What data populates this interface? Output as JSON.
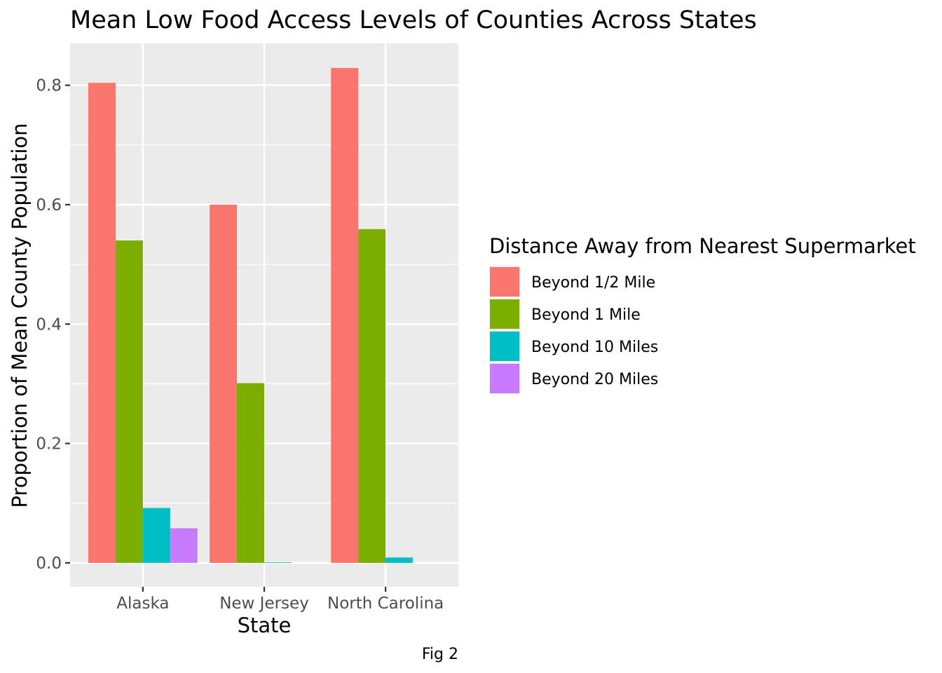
{
  "chart_data": {
    "type": "bar",
    "title": "Mean Low Food Access Levels of Counties Across States",
    "xlabel": "State",
    "ylabel": "Proportion of Mean County Population",
    "caption": "Fig 2",
    "categories": [
      "Alaska",
      "New Jersey",
      "North Carolina"
    ],
    "series": [
      {
        "name": "Beyond 1/2 Mile",
        "color": "#F8766D",
        "values": [
          0.804,
          0.6,
          0.829
        ]
      },
      {
        "name": "Beyond 1 Mile",
        "color": "#7CAE00",
        "values": [
          0.54,
          0.301,
          0.559
        ]
      },
      {
        "name": "Beyond 10 Miles",
        "color": "#00BFC4",
        "values": [
          0.092,
          0.001,
          0.009
        ]
      },
      {
        "name": "Beyond 20 Miles",
        "color": "#C77CFF",
        "values": [
          0.058,
          0.0,
          0.0
        ]
      }
    ],
    "ylim": [
      -0.04,
      0.87
    ],
    "yticks": [
      0.0,
      0.2,
      0.4,
      0.6,
      0.8
    ],
    "ytick_labels": [
      "0.0",
      "0.2",
      "0.4",
      "0.6",
      "0.8"
    ],
    "grid": true,
    "legend": {
      "title": "Distance Away from Nearest Supermarket",
      "placement": "right"
    },
    "panel_background": "#EBEBEB"
  }
}
